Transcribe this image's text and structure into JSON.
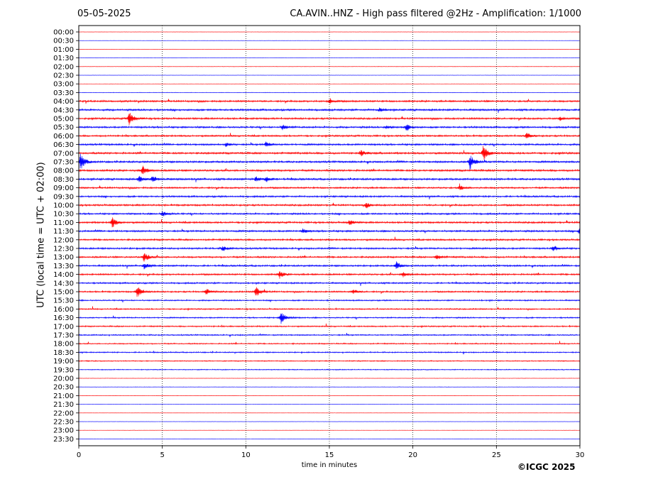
{
  "header": {
    "date": "05-05-2025",
    "title": "CA.AVIN..HNZ - High pass filtered @2Hz - Amplification: 1/1000"
  },
  "footer": {
    "copyright": "©ICGC 2025"
  },
  "chart_data": {
    "type": "line",
    "title": "CA.AVIN..HNZ - High pass filtered @2Hz - Amplification: 1/1000",
    "xlabel": "time in minutes",
    "ylabel": "UTC (local time = UTC + 02:00)",
    "xlim": [
      0,
      30
    ],
    "x_ticks": [
      "0",
      "5",
      "10",
      "15",
      "20",
      "25",
      "30"
    ],
    "x_grid": true,
    "trace_colors": [
      "#ff0000",
      "#0000ff"
    ],
    "rows": [
      "00:00",
      "00:30",
      "01:00",
      "01:30",
      "02:00",
      "02:30",
      "03:00",
      "03:30",
      "04:00",
      "04:30",
      "05:00",
      "05:30",
      "06:00",
      "06:30",
      "07:00",
      "07:30",
      "08:00",
      "08:30",
      "09:00",
      "09:30",
      "10:00",
      "10:30",
      "11:00",
      "11:30",
      "12:00",
      "12:30",
      "13:00",
      "13:30",
      "14:00",
      "14:30",
      "15:00",
      "15:30",
      "16:00",
      "16:30",
      "17:00",
      "17:30",
      "18:00",
      "18:30",
      "19:00",
      "19:30",
      "20:00",
      "20:30",
      "21:00",
      "21:30",
      "22:00",
      "22:30",
      "23:00",
      "23:30"
    ],
    "noise_level": [
      0.2,
      0.2,
      0.2,
      0.2,
      0.3,
      0.2,
      0.2,
      0.4,
      1.4,
      1.5,
      1.4,
      1.4,
      1.3,
      1.4,
      1.5,
      1.5,
      1.5,
      1.5,
      1.3,
      1.3,
      1.4,
      1.3,
      1.4,
      1.4,
      1.3,
      1.3,
      1.3,
      1.3,
      1.3,
      1.2,
      1.2,
      1.0,
      1.0,
      1.0,
      1.0,
      1.0,
      0.9,
      0.9,
      0.8,
      0.7,
      0.3,
      0.3,
      0.3,
      0.2,
      0.2,
      0.2,
      0.2,
      0.2
    ],
    "events": [
      {
        "row": "04:00",
        "t": 15.0,
        "amp": 4
      },
      {
        "row": "04:30",
        "t": 18.0,
        "amp": 3
      },
      {
        "row": "05:00",
        "t": 3.0,
        "amp": 10
      },
      {
        "row": "05:00",
        "t": 28.8,
        "amp": 3
      },
      {
        "row": "05:30",
        "t": 12.2,
        "amp": 4
      },
      {
        "row": "05:30",
        "t": 19.6,
        "amp": 5
      },
      {
        "row": "05:30",
        "t": 18.4,
        "amp": 3
      },
      {
        "row": "06:00",
        "t": 26.8,
        "amp": 5
      },
      {
        "row": "06:30",
        "t": 8.8,
        "amp": 3
      },
      {
        "row": "06:30",
        "t": 11.2,
        "amp": 4
      },
      {
        "row": "07:00",
        "t": 24.2,
        "amp": 12
      },
      {
        "row": "07:00",
        "t": 16.9,
        "amp": 4
      },
      {
        "row": "07:30",
        "t": 0.1,
        "amp": 12
      },
      {
        "row": "07:30",
        "t": 23.4,
        "amp": 12
      },
      {
        "row": "08:00",
        "t": 3.8,
        "amp": 7
      },
      {
        "row": "08:30",
        "t": 3.6,
        "amp": 5
      },
      {
        "row": "08:30",
        "t": 4.4,
        "amp": 5
      },
      {
        "row": "08:30",
        "t": 10.6,
        "amp": 4
      },
      {
        "row": "08:30",
        "t": 11.2,
        "amp": 4
      },
      {
        "row": "09:00",
        "t": 22.8,
        "amp": 4
      },
      {
        "row": "10:00",
        "t": 17.2,
        "amp": 4
      },
      {
        "row": "10:30",
        "t": 5.0,
        "amp": 4
      },
      {
        "row": "11:00",
        "t": 2.0,
        "amp": 8
      },
      {
        "row": "11:00",
        "t": 16.2,
        "amp": 4
      },
      {
        "row": "11:30",
        "t": 30.0,
        "amp": 10
      },
      {
        "row": "11:30",
        "t": 13.4,
        "amp": 3
      },
      {
        "row": "12:30",
        "t": 28.4,
        "amp": 4
      },
      {
        "row": "12:30",
        "t": 8.6,
        "amp": 4
      },
      {
        "row": "13:00",
        "t": 3.9,
        "amp": 8
      },
      {
        "row": "13:00",
        "t": 21.4,
        "amp": 4
      },
      {
        "row": "13:30",
        "t": 3.9,
        "amp": 5
      },
      {
        "row": "13:30",
        "t": 19.0,
        "amp": 6
      },
      {
        "row": "14:00",
        "t": 12.0,
        "amp": 6
      },
      {
        "row": "14:00",
        "t": 19.4,
        "amp": 4
      },
      {
        "row": "15:00",
        "t": 3.5,
        "amp": 9
      },
      {
        "row": "15:00",
        "t": 10.6,
        "amp": 8
      },
      {
        "row": "15:00",
        "t": 7.6,
        "amp": 5
      },
      {
        "row": "15:00",
        "t": 16.4,
        "amp": 4
      },
      {
        "row": "16:30",
        "t": 12.1,
        "amp": 10
      }
    ]
  }
}
